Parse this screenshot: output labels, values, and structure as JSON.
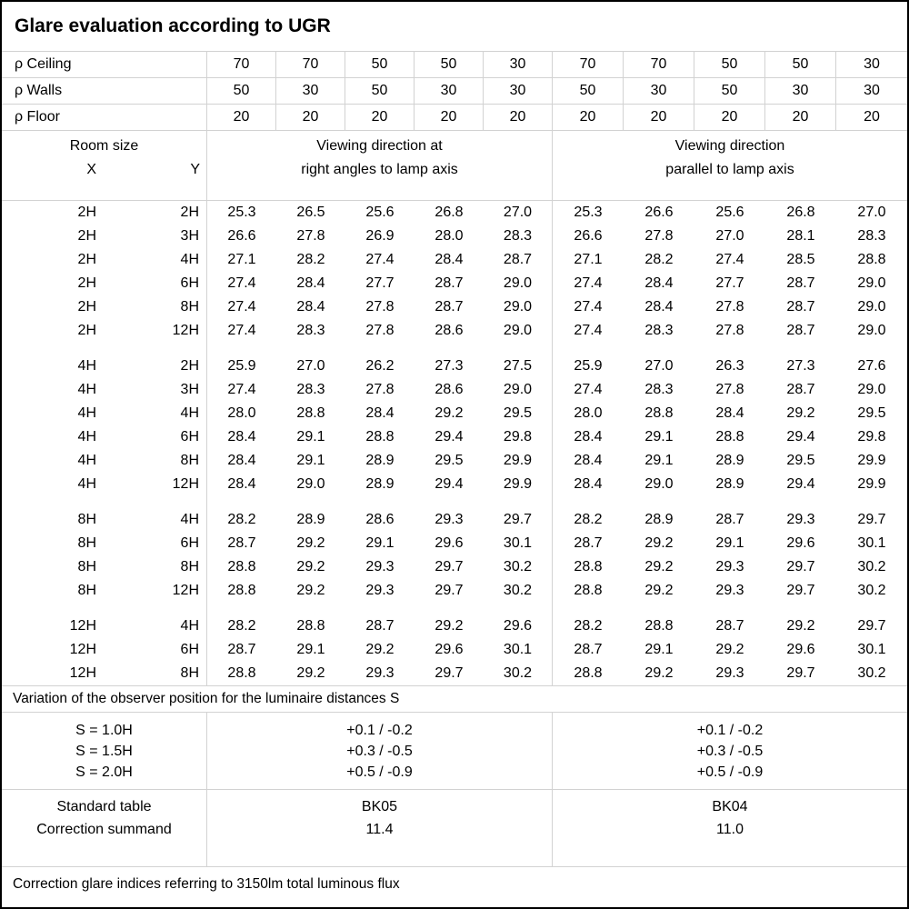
{
  "title": "Glare evaluation according to UGR",
  "reflectances": {
    "rows": [
      {
        "label": "ρ Ceiling",
        "values": [
          "70",
          "70",
          "50",
          "50",
          "30",
          "70",
          "70",
          "50",
          "50",
          "30"
        ]
      },
      {
        "label": "ρ Walls",
        "values": [
          "50",
          "30",
          "50",
          "30",
          "30",
          "50",
          "30",
          "50",
          "30",
          "30"
        ]
      },
      {
        "label": "ρ Floor",
        "values": [
          "20",
          "20",
          "20",
          "20",
          "20",
          "20",
          "20",
          "20",
          "20",
          "20"
        ]
      }
    ]
  },
  "room_header": {
    "label": "Room size",
    "x_label": "X",
    "y_label": "Y",
    "left_heading": [
      "Viewing direction at",
      "right angles to lamp axis"
    ],
    "right_heading": [
      "Viewing direction",
      "parallel to lamp axis"
    ]
  },
  "ugr_table": {
    "blocks": [
      {
        "rows": [
          {
            "x": "2H",
            "y": "2H",
            "right_angles": [
              "25.3",
              "26.5",
              "25.6",
              "26.8",
              "27.0"
            ],
            "parallel": [
              "25.3",
              "26.6",
              "25.6",
              "26.8",
              "27.0"
            ]
          },
          {
            "x": "2H",
            "y": "3H",
            "right_angles": [
              "26.6",
              "27.8",
              "26.9",
              "28.0",
              "28.3"
            ],
            "parallel": [
              "26.6",
              "27.8",
              "27.0",
              "28.1",
              "28.3"
            ]
          },
          {
            "x": "2H",
            "y": "4H",
            "right_angles": [
              "27.1",
              "28.2",
              "27.4",
              "28.4",
              "28.7"
            ],
            "parallel": [
              "27.1",
              "28.2",
              "27.4",
              "28.5",
              "28.8"
            ]
          },
          {
            "x": "2H",
            "y": "6H",
            "right_angles": [
              "27.4",
              "28.4",
              "27.7",
              "28.7",
              "29.0"
            ],
            "parallel": [
              "27.4",
              "28.4",
              "27.7",
              "28.7",
              "29.0"
            ]
          },
          {
            "x": "2H",
            "y": "8H",
            "right_angles": [
              "27.4",
              "28.4",
              "27.8",
              "28.7",
              "29.0"
            ],
            "parallel": [
              "27.4",
              "28.4",
              "27.8",
              "28.7",
              "29.0"
            ]
          },
          {
            "x": "2H",
            "y": "12H",
            "right_angles": [
              "27.4",
              "28.3",
              "27.8",
              "28.6",
              "29.0"
            ],
            "parallel": [
              "27.4",
              "28.3",
              "27.8",
              "28.7",
              "29.0"
            ]
          }
        ]
      },
      {
        "rows": [
          {
            "x": "4H",
            "y": "2H",
            "right_angles": [
              "25.9",
              "27.0",
              "26.2",
              "27.3",
              "27.5"
            ],
            "parallel": [
              "25.9",
              "27.0",
              "26.3",
              "27.3",
              "27.6"
            ]
          },
          {
            "x": "4H",
            "y": "3H",
            "right_angles": [
              "27.4",
              "28.3",
              "27.8",
              "28.6",
              "29.0"
            ],
            "parallel": [
              "27.4",
              "28.3",
              "27.8",
              "28.7",
              "29.0"
            ]
          },
          {
            "x": "4H",
            "y": "4H",
            "right_angles": [
              "28.0",
              "28.8",
              "28.4",
              "29.2",
              "29.5"
            ],
            "parallel": [
              "28.0",
              "28.8",
              "28.4",
              "29.2",
              "29.5"
            ]
          },
          {
            "x": "4H",
            "y": "6H",
            "right_angles": [
              "28.4",
              "29.1",
              "28.8",
              "29.4",
              "29.8"
            ],
            "parallel": [
              "28.4",
              "29.1",
              "28.8",
              "29.4",
              "29.8"
            ]
          },
          {
            "x": "4H",
            "y": "8H",
            "right_angles": [
              "28.4",
              "29.1",
              "28.9",
              "29.5",
              "29.9"
            ],
            "parallel": [
              "28.4",
              "29.1",
              "28.9",
              "29.5",
              "29.9"
            ]
          },
          {
            "x": "4H",
            "y": "12H",
            "right_angles": [
              "28.4",
              "29.0",
              "28.9",
              "29.4",
              "29.9"
            ],
            "parallel": [
              "28.4",
              "29.0",
              "28.9",
              "29.4",
              "29.9"
            ]
          }
        ]
      },
      {
        "rows": [
          {
            "x": "8H",
            "y": "4H",
            "right_angles": [
              "28.2",
              "28.9",
              "28.6",
              "29.3",
              "29.7"
            ],
            "parallel": [
              "28.2",
              "28.9",
              "28.7",
              "29.3",
              "29.7"
            ]
          },
          {
            "x": "8H",
            "y": "6H",
            "right_angles": [
              "28.7",
              "29.2",
              "29.1",
              "29.6",
              "30.1"
            ],
            "parallel": [
              "28.7",
              "29.2",
              "29.1",
              "29.6",
              "30.1"
            ]
          },
          {
            "x": "8H",
            "y": "8H",
            "right_angles": [
              "28.8",
              "29.2",
              "29.3",
              "29.7",
              "30.2"
            ],
            "parallel": [
              "28.8",
              "29.2",
              "29.3",
              "29.7",
              "30.2"
            ]
          },
          {
            "x": "8H",
            "y": "12H",
            "right_angles": [
              "28.8",
              "29.2",
              "29.3",
              "29.7",
              "30.2"
            ],
            "parallel": [
              "28.8",
              "29.2",
              "29.3",
              "29.7",
              "30.2"
            ]
          }
        ]
      },
      {
        "rows": [
          {
            "x": "12H",
            "y": "4H",
            "right_angles": [
              "28.2",
              "28.8",
              "28.7",
              "29.2",
              "29.6"
            ],
            "parallel": [
              "28.2",
              "28.8",
              "28.7",
              "29.2",
              "29.7"
            ]
          },
          {
            "x": "12H",
            "y": "6H",
            "right_angles": [
              "28.7",
              "29.1",
              "29.2",
              "29.6",
              "30.1"
            ],
            "parallel": [
              "28.7",
              "29.1",
              "29.2",
              "29.6",
              "30.1"
            ]
          },
          {
            "x": "12H",
            "y": "8H",
            "right_angles": [
              "28.8",
              "29.2",
              "29.3",
              "29.7",
              "30.2"
            ],
            "parallel": [
              "28.8",
              "29.2",
              "29.3",
              "29.7",
              "30.2"
            ]
          }
        ]
      }
    ]
  },
  "variation_note": "Variation of the observer position for the luminaire distances S",
  "observer_variation": {
    "rows": [
      {
        "label": "S = 1.0H",
        "left": "+0.1 / -0.2",
        "right": "+0.1 / -0.2"
      },
      {
        "label": "S = 1.5H",
        "left": "+0.3 / -0.5",
        "right": "+0.3 / -0.5"
      },
      {
        "label": "S = 2.0H",
        "left": "+0.5 / -0.9",
        "right": "+0.5 / -0.9"
      }
    ]
  },
  "standard_section": {
    "rows": [
      {
        "label": "Standard table",
        "left": "BK05",
        "right": "BK04"
      },
      {
        "label": "Correction summand",
        "left": "11.4",
        "right": "11.0"
      }
    ]
  },
  "footer_note": "Correction glare indices referring to 3150lm total luminous flux",
  "colors": {
    "background": "#ffffff",
    "text": "#000000",
    "grid_line": "#d2d2d2",
    "outer_border": "#000000"
  }
}
